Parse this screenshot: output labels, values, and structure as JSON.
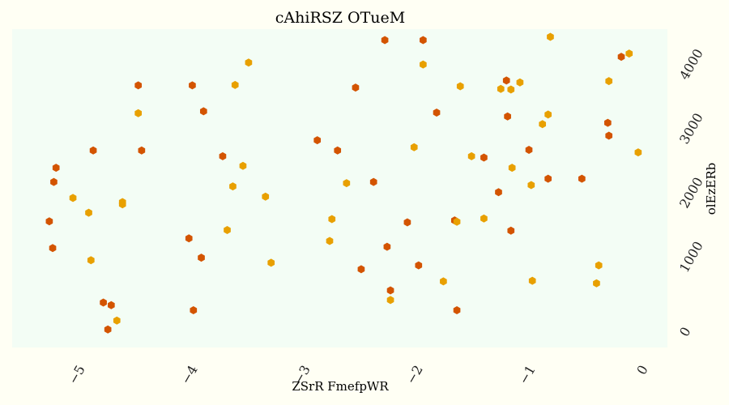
{
  "chart_data": {
    "type": "scatter",
    "title": "cAhiRSZ  OTueM",
    "xlabel": "ZSrR FmefpWR",
    "ylabel": "olEzERb",
    "xlim": [
      -5.65,
      0.17
    ],
    "ylim": [
      -180,
      4780
    ],
    "x_ticks": [
      -5,
      -4,
      -3,
      -2,
      -1,
      0
    ],
    "x_tick_labels": [
      "−5",
      "−4",
      "−3",
      "−2",
      "−1",
      "0"
    ],
    "y_ticks": [
      0,
      1000,
      2000,
      3000,
      4000
    ],
    "y_tick_labels": [
      "0",
      "1000",
      "2000",
      "3000",
      "4000"
    ],
    "y_axis_side": "right",
    "grid": false,
    "legend": "none",
    "plot_background": "#f3fdf5",
    "page_background": "#fffff4",
    "marker": "hexagon",
    "series": [
      {
        "color": "#d35400",
        "points": [
          [
            -5.32,
            1785
          ],
          [
            -5.29,
            1370
          ],
          [
            -5.28,
            2400
          ],
          [
            -5.26,
            2620
          ],
          [
            -4.93,
            2890
          ],
          [
            -4.84,
            520
          ],
          [
            -4.8,
            100
          ],
          [
            -4.77,
            480
          ],
          [
            -4.53,
            3905
          ],
          [
            -4.5,
            2890
          ],
          [
            -4.08,
            1520
          ],
          [
            -4.05,
            3905
          ],
          [
            -4.04,
            400
          ],
          [
            -3.97,
            1220
          ],
          [
            -3.95,
            3500
          ],
          [
            -3.78,
            2800
          ],
          [
            -2.94,
            3050
          ],
          [
            -2.76,
            2890
          ],
          [
            -2.6,
            3870
          ],
          [
            -2.55,
            1040
          ],
          [
            -2.44,
            2400
          ],
          [
            -2.34,
            4610
          ],
          [
            -2.32,
            1390
          ],
          [
            -2.29,
            710
          ],
          [
            -2.14,
            1770
          ],
          [
            -2.04,
            1100
          ],
          [
            -2.0,
            4610
          ],
          [
            -1.88,
            3480
          ],
          [
            -1.72,
            1800
          ],
          [
            -1.7,
            400
          ],
          [
            -1.46,
            2780
          ],
          [
            -1.33,
            2240
          ],
          [
            -1.26,
            3980
          ],
          [
            -1.25,
            3420
          ],
          [
            -1.22,
            1640
          ],
          [
            -1.06,
            2900
          ],
          [
            -0.89,
            2450
          ],
          [
            -0.59,
            2450
          ],
          [
            -0.36,
            3320
          ],
          [
            -0.35,
            3120
          ],
          [
            -0.24,
            4350
          ]
        ]
      },
      {
        "color": "#e8a000",
        "points": [
          [
            -5.11,
            2150
          ],
          [
            -4.97,
            1920
          ],
          [
            -4.95,
            1180
          ],
          [
            -4.72,
            240
          ],
          [
            -4.67,
            2085
          ],
          [
            -4.67,
            2050
          ],
          [
            -4.53,
            3470
          ],
          [
            -3.74,
            1650
          ],
          [
            -3.69,
            2330
          ],
          [
            -3.67,
            3910
          ],
          [
            -3.6,
            2650
          ],
          [
            -3.55,
            4260
          ],
          [
            -3.4,
            2170
          ],
          [
            -3.35,
            1140
          ],
          [
            -2.83,
            1480
          ],
          [
            -2.81,
            1820
          ],
          [
            -2.68,
            2380
          ],
          [
            -2.29,
            560
          ],
          [
            -2.08,
            2940
          ],
          [
            -2.0,
            4230
          ],
          [
            -1.82,
            850
          ],
          [
            -1.7,
            1780
          ],
          [
            -1.67,
            3890
          ],
          [
            -1.57,
            2800
          ],
          [
            -1.46,
            1830
          ],
          [
            -1.31,
            3850
          ],
          [
            -1.22,
            3840
          ],
          [
            -1.21,
            2620
          ],
          [
            -1.14,
            3950
          ],
          [
            -1.04,
            2350
          ],
          [
            -1.03,
            860
          ],
          [
            -0.94,
            3300
          ],
          [
            -0.89,
            3450
          ],
          [
            -0.87,
            4660
          ],
          [
            -0.46,
            820
          ],
          [
            -0.44,
            1100
          ],
          [
            -0.35,
            3970
          ],
          [
            -0.17,
            4400
          ],
          [
            -0.09,
            2860
          ]
        ]
      }
    ]
  }
}
